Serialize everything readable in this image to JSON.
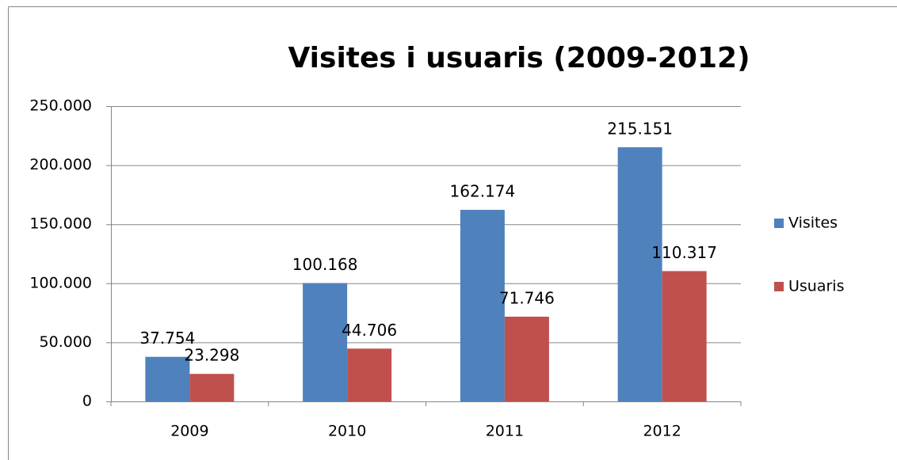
{
  "chart_data": {
    "type": "bar",
    "title": "Visites i usuaris (2009-2012)",
    "categories": [
      "2009",
      "2010",
      "2011",
      "2012"
    ],
    "series": [
      {
        "name": "Visites",
        "color": "#4f81bd",
        "values": [
          37754,
          100168,
          162174,
          215151
        ],
        "value_labels": [
          "37.754",
          "100.168",
          "162.174",
          "215.151"
        ]
      },
      {
        "name": "Usuaris",
        "color": "#c0504d",
        "values": [
          23298,
          44706,
          71746,
          110317
        ],
        "value_labels": [
          "23.298",
          "44.706",
          "71.746",
          "110.317"
        ]
      }
    ],
    "ylim": [
      0,
      250000
    ],
    "yticks": [
      0,
      {
        "value": 50000,
        "label": "50.000"
      },
      {
        "value": 100000,
        "label": "100.000"
      },
      {
        "value": 150000,
        "label": "150.000"
      },
      {
        "value": 200000,
        "label": "200.000"
      },
      {
        "value": 250000,
        "label": "250.000"
      }
    ],
    "grid": true,
    "legend": "right"
  }
}
